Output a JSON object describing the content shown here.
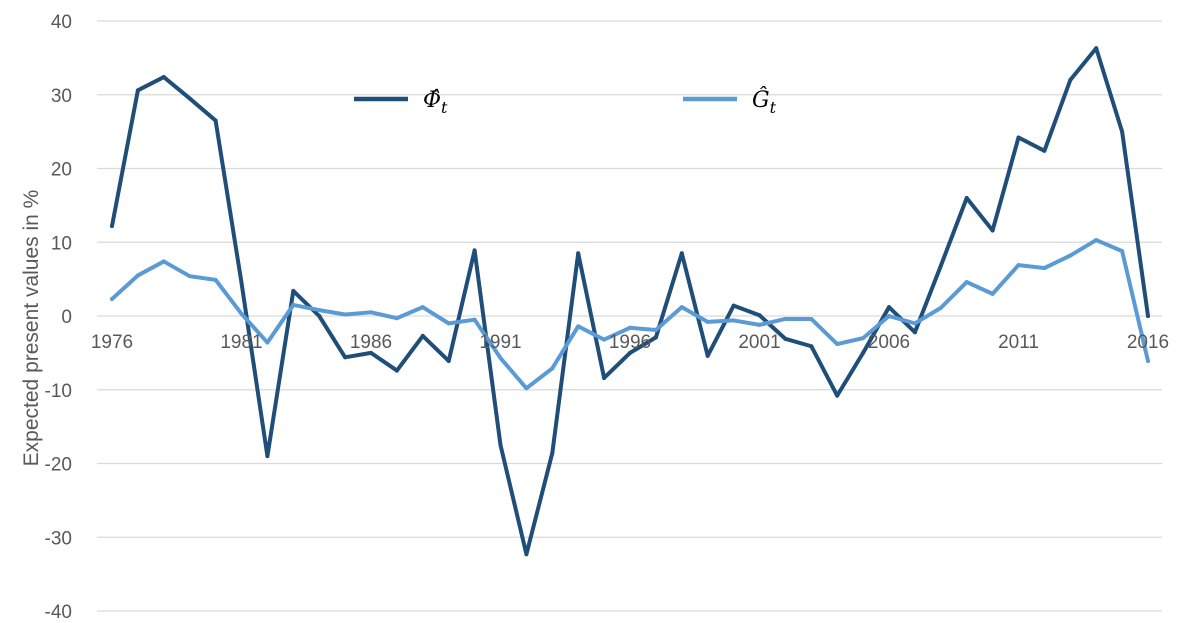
{
  "chart_data": {
    "type": "line",
    "title": "",
    "xlabel": "",
    "ylabel": "Expected present values in %",
    "ylim": [
      -40,
      40
    ],
    "yticks": [
      40,
      30,
      20,
      10,
      0,
      -10,
      -20,
      -30,
      -40
    ],
    "xtick_labels": [
      "1976",
      "1981",
      "1986",
      "1991",
      "1996",
      "2001",
      "2006",
      "2011",
      "2016"
    ],
    "grid": true,
    "legend_position": "top-center",
    "x": [
      1976,
      1977,
      1978,
      1979,
      1980,
      1981,
      1982,
      1983,
      1984,
      1985,
      1986,
      1987,
      1988,
      1989,
      1990,
      1991,
      1992,
      1993,
      1994,
      1995,
      1996,
      1997,
      1998,
      1999,
      2000,
      2001,
      2002,
      2003,
      2004,
      2005,
      2006,
      2007,
      2008,
      2009,
      2010,
      2011,
      2012,
      2013,
      2014,
      2015,
      2016
    ],
    "series": [
      {
        "name": "Φ̂t",
        "legend_main": "Φ̂",
        "legend_sub": "t",
        "color": "#1f4e79",
        "values": [
          12.2,
          30.6,
          32.4,
          29.5,
          26.5,
          4.5,
          -19.0,
          3.4,
          0.0,
          -5.6,
          -5.0,
          -7.4,
          -2.7,
          -6.1,
          8.9,
          -17.5,
          -32.3,
          -18.6,
          8.5,
          -8.4,
          -5.0,
          -2.9,
          8.5,
          -5.4,
          1.4,
          0.1,
          -3.1,
          -4.1,
          -10.8,
          -5.0,
          1.2,
          -2.2,
          6.8,
          16.0,
          11.6,
          24.2,
          22.4,
          32.0,
          36.3,
          25.0,
          0.0
        ]
      },
      {
        "name": "Ĝt",
        "legend_main": "Ĝ",
        "legend_sub": "t",
        "color": "#5b9bd5",
        "values": [
          2.3,
          5.5,
          7.4,
          5.4,
          4.9,
          0.3,
          -3.6,
          1.5,
          0.8,
          0.2,
          0.5,
          -0.3,
          1.2,
          -1.0,
          -0.5,
          -5.7,
          -9.8,
          -7.1,
          -1.4,
          -3.2,
          -1.6,
          -1.9,
          1.2,
          -0.8,
          -0.6,
          -1.2,
          -0.4,
          -0.4,
          -3.8,
          -3.0,
          0.0,
          -1.0,
          1.1,
          4.6,
          3.0,
          6.9,
          6.5,
          8.2,
          10.3,
          8.8,
          -6.1
        ]
      }
    ]
  }
}
